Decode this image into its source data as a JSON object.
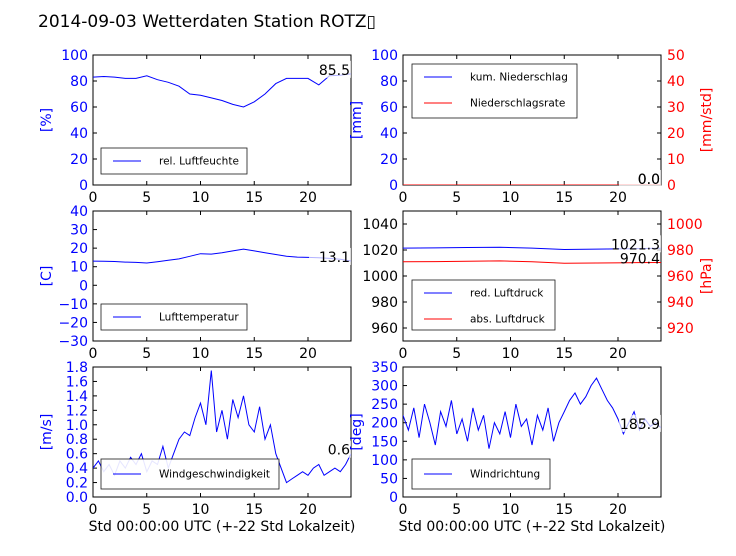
{
  "title": "2014-09-03 Wetterdaten Station ROTZ▯",
  "x_label": "Std 00:00:00 UTC (+-22 Std Lokalzeit)",
  "x_ticks": [
    "0",
    "5",
    "10",
    "15",
    "20"
  ],
  "colors": {
    "left_axis": "#0000ff",
    "right_axis": "#ff0000",
    "series_blue": "#0000ff",
    "series_red": "#ff0000"
  },
  "chart_data": [
    {
      "type": "line",
      "ylabel": "[%]",
      "xlim": [
        0,
        24
      ],
      "ylim": [
        0,
        100
      ],
      "yticks": [
        "0",
        "20",
        "40",
        "60",
        "80",
        "100"
      ],
      "legend_placement": "lower-left",
      "current_value": "85.5",
      "series": [
        {
          "name": "rel. Luftfeuchte",
          "color": "#0000ff",
          "x": [
            0,
            1,
            2,
            3,
            4,
            5,
            6,
            7,
            8,
            9,
            10,
            11,
            12,
            13,
            14,
            15,
            16,
            17,
            18,
            19,
            20,
            21,
            22,
            23,
            24
          ],
          "y": [
            83,
            83.5,
            83,
            82,
            82,
            84,
            81,
            79,
            76,
            70,
            69,
            67,
            65,
            62,
            60,
            64,
            70,
            78,
            82,
            82,
            82,
            77,
            84,
            84.5,
            85.5
          ]
        }
      ]
    },
    {
      "type": "line",
      "ylabel": "[mm]",
      "ylabel_right": "[mm/std]",
      "xlim": [
        0,
        24
      ],
      "ylim": [
        0,
        100
      ],
      "ylim_right": [
        0,
        50
      ],
      "yticks": [
        "0",
        "20",
        "40",
        "60",
        "80",
        "100"
      ],
      "yticks_right": [
        "0",
        "10",
        "20",
        "30",
        "40",
        "50"
      ],
      "legend_placement": "upper-left",
      "current_value": "0.0",
      "current_value_right": "0.0",
      "series": [
        {
          "name": "kum. Niederschlag",
          "color": "#0000ff",
          "x": [
            0,
            24
          ],
          "y": [
            0,
            0
          ]
        },
        {
          "name": "Niederschlagsrate",
          "color": "#ff0000",
          "x": [
            0,
            24
          ],
          "y": [
            0,
            0
          ],
          "axis": "right"
        }
      ]
    },
    {
      "type": "line",
      "ylabel": "[C]",
      "xlim": [
        0,
        24
      ],
      "ylim": [
        -30,
        40
      ],
      "yticks": [
        "−30",
        "−20",
        "−10",
        "0",
        "10",
        "20",
        "30",
        "40"
      ],
      "legend_placement": "lower-left",
      "current_value": "13.1",
      "series": [
        {
          "name": "Lufttemperatur",
          "color": "#0000ff",
          "x": [
            0,
            1,
            2,
            3,
            4,
            5,
            6,
            7,
            8,
            9,
            10,
            11,
            12,
            13,
            14,
            15,
            16,
            17,
            18,
            19,
            20,
            21,
            22,
            23,
            24
          ],
          "y": [
            13,
            12.9,
            12.8,
            12.5,
            12.3,
            12,
            12.7,
            13.5,
            14.2,
            15.6,
            17,
            16.8,
            17.5,
            18.5,
            19.5,
            18.5,
            17.5,
            16.6,
            15.6,
            15.2,
            15,
            14.8,
            14.5,
            14,
            13.1
          ]
        }
      ]
    },
    {
      "type": "line",
      "ylabel_right": "[hPa]",
      "xlim": [
        0,
        24
      ],
      "ylim": [
        950,
        1050
      ],
      "ylim_right": [
        910,
        1010
      ],
      "yticks": [
        "960",
        "980",
        "1000",
        "1020",
        "1040"
      ],
      "yticks_right": [
        "920",
        "940",
        "960",
        "980",
        "1000"
      ],
      "legend_placement": "lower-left",
      "current_value": "1021.3",
      "current_value_right": "970.4",
      "series": [
        {
          "name": "red. Luftdruck",
          "color": "#0000ff",
          "x": [
            0,
            3,
            6,
            9,
            12,
            15,
            18,
            21,
            24
          ],
          "y": [
            1021.5,
            1021.6,
            1021.9,
            1022.1,
            1021.5,
            1020.4,
            1020.7,
            1021.0,
            1021.3
          ]
        },
        {
          "name": "abs. Luftdruck",
          "color": "#ff0000",
          "axis": "right",
          "x": [
            0,
            3,
            6,
            9,
            12,
            15,
            18,
            21,
            24
          ],
          "y": [
            971.0,
            971.1,
            971.3,
            971.6,
            971.0,
            969.8,
            970.0,
            970.2,
            970.4
          ]
        }
      ]
    },
    {
      "type": "line",
      "ylabel": "[m/s]",
      "xlim": [
        0,
        24
      ],
      "ylim": [
        0,
        1.8
      ],
      "yticks": [
        "0.0",
        "0.2",
        "0.4",
        "0.6",
        "0.8",
        "1.0",
        "1.2",
        "1.4",
        "1.6",
        "1.8"
      ],
      "legend_placement": "lower-left",
      "current_value": "0.6",
      "series": [
        {
          "name": "Windgeschwindigkeit",
          "color": "#0000ff",
          "x": [
            0,
            0.5,
            1,
            1.5,
            2,
            2.5,
            3,
            3.5,
            4,
            4.5,
            5,
            5.5,
            6,
            6.5,
            7,
            7.5,
            8,
            8.5,
            9,
            9.5,
            10,
            10.5,
            11,
            11.5,
            12,
            12.5,
            13,
            13.5,
            14,
            14.5,
            15,
            15.5,
            16,
            16.5,
            17,
            17.5,
            18,
            18.5,
            19,
            19.5,
            20,
            20.5,
            21,
            21.5,
            22,
            22.5,
            23,
            23.5,
            24
          ],
          "y": [
            0.4,
            0.5,
            0.35,
            0.45,
            0.3,
            0.5,
            0.4,
            0.55,
            0.45,
            0.6,
            0.35,
            0.5,
            0.45,
            0.7,
            0.4,
            0.6,
            0.8,
            0.9,
            0.85,
            1.1,
            1.3,
            1.0,
            1.75,
            0.9,
            1.2,
            0.8,
            1.35,
            1.1,
            1.4,
            1.0,
            0.9,
            1.25,
            0.8,
            1.0,
            0.6,
            0.4,
            0.2,
            0.25,
            0.3,
            0.35,
            0.3,
            0.4,
            0.45,
            0.3,
            0.35,
            0.4,
            0.35,
            0.45,
            0.6
          ]
        }
      ]
    },
    {
      "type": "line",
      "ylabel": "[deg]",
      "xlim": [
        0,
        24
      ],
      "ylim": [
        0,
        350
      ],
      "yticks": [
        "0",
        "50",
        "100",
        "150",
        "200",
        "250",
        "300",
        "350"
      ],
      "legend_placement": "lower-left",
      "current_value": "185.9",
      "series": [
        {
          "name": "Windrichtung",
          "color": "#0000ff",
          "x": [
            0,
            0.5,
            1,
            1.5,
            2,
            2.5,
            3,
            3.5,
            4,
            4.5,
            5,
            5.5,
            6,
            6.5,
            7,
            7.5,
            8,
            8.5,
            9,
            9.5,
            10,
            10.5,
            11,
            11.5,
            12,
            12.5,
            13,
            13.5,
            14,
            14.5,
            15,
            15.5,
            16,
            16.5,
            17,
            17.5,
            18,
            18.5,
            19,
            19.5,
            20,
            20.5,
            21,
            21.5,
            22,
            22.5,
            23,
            23.5,
            24
          ],
          "y": [
            220,
            180,
            240,
            160,
            250,
            200,
            140,
            230,
            190,
            260,
            170,
            210,
            150,
            240,
            180,
            220,
            130,
            200,
            170,
            230,
            160,
            250,
            190,
            210,
            140,
            220,
            180,
            240,
            150,
            200,
            230,
            260,
            280,
            250,
            270,
            300,
            320,
            290,
            260,
            240,
            210,
            170,
            200,
            230,
            180,
            210,
            190,
            200,
            186
          ]
        }
      ]
    }
  ]
}
